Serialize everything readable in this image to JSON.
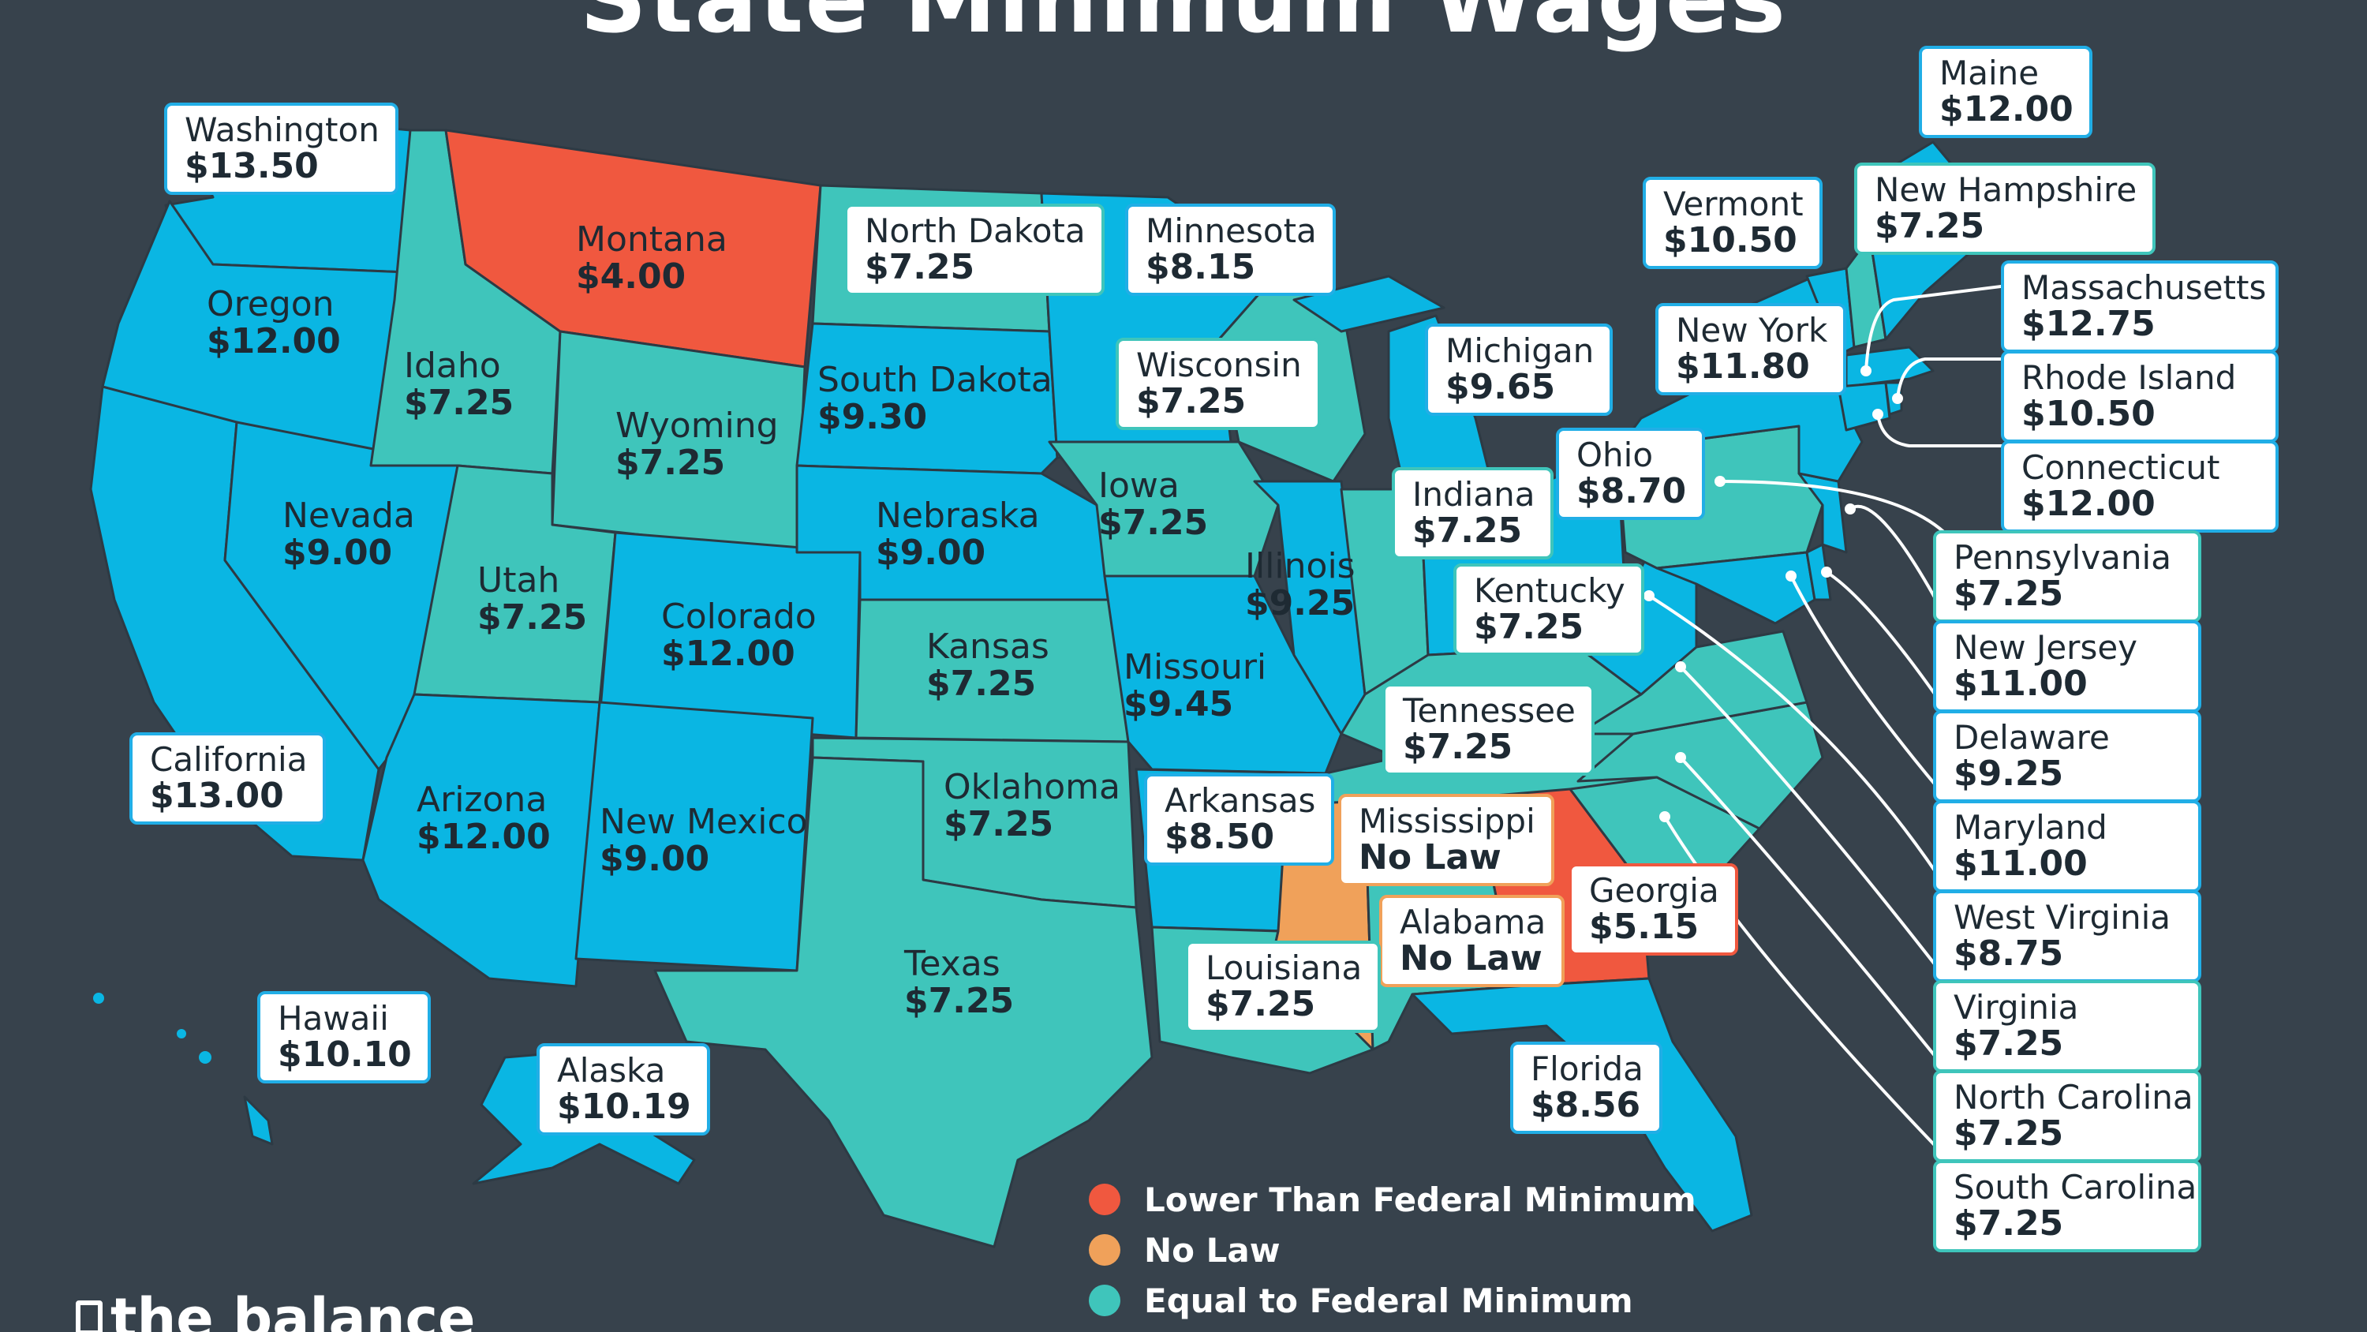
{
  "title": "State Minimum Wages",
  "colors": {
    "background": "#37424c",
    "lower": "#f0583f",
    "no_law": "#f0a15a",
    "equal": "#3fc5bb",
    "higher": "#0ab6e3",
    "label_text": "#1e2a33",
    "white": "#ffffff"
  },
  "states": {
    "washington": {
      "name": "Washington",
      "wage": "$13.50"
    },
    "oregon": {
      "name": "Oregon",
      "wage": "$12.00"
    },
    "california": {
      "name": "California",
      "wage": "$13.00"
    },
    "nevada": {
      "name": "Nevada",
      "wage": "$9.00"
    },
    "idaho": {
      "name": "Idaho",
      "wage": "$7.25"
    },
    "montana": {
      "name": "Montana",
      "wage": "$4.00"
    },
    "wyoming": {
      "name": "Wyoming",
      "wage": "$7.25"
    },
    "utah": {
      "name": "Utah",
      "wage": "$7.25"
    },
    "colorado": {
      "name": "Colorado",
      "wage": "$12.00"
    },
    "arizona": {
      "name": "Arizona",
      "wage": "$12.00"
    },
    "new_mexico": {
      "name": "New Mexico",
      "wage": "$9.00"
    },
    "north_dakota": {
      "name": "North Dakota",
      "wage": "$7.25"
    },
    "south_dakota": {
      "name": "South Dakota",
      "wage": "$9.30"
    },
    "nebraska": {
      "name": "Nebraska",
      "wage": "$9.00"
    },
    "kansas": {
      "name": "Kansas",
      "wage": "$7.25"
    },
    "oklahoma": {
      "name": "Oklahoma",
      "wage": "$7.25"
    },
    "texas": {
      "name": "Texas",
      "wage": "$7.25"
    },
    "minnesota": {
      "name": "Minnesota",
      "wage": "$8.15"
    },
    "iowa": {
      "name": "Iowa",
      "wage": "$7.25"
    },
    "missouri": {
      "name": "Missouri",
      "wage": "$9.45"
    },
    "arkansas": {
      "name": "Arkansas",
      "wage": "$8.50"
    },
    "louisiana": {
      "name": "Louisiana",
      "wage": "$7.25"
    },
    "wisconsin": {
      "name": "Wisconsin",
      "wage": "$7.25"
    },
    "illinois": {
      "name": "Illinois",
      "wage": "$9.25"
    },
    "michigan": {
      "name": "Michigan",
      "wage": "$9.65"
    },
    "indiana": {
      "name": "Indiana",
      "wage": "$7.25"
    },
    "ohio": {
      "name": "Ohio",
      "wage": "$8.70"
    },
    "kentucky": {
      "name": "Kentucky",
      "wage": "$7.25"
    },
    "tennessee": {
      "name": "Tennessee",
      "wage": "$7.25"
    },
    "mississippi": {
      "name": "Mississippi",
      "wage": "No Law"
    },
    "alabama": {
      "name": "Alabama",
      "wage": "No Law"
    },
    "georgia": {
      "name": "Georgia",
      "wage": "$5.15"
    },
    "florida": {
      "name": "Florida",
      "wage": "$8.56"
    },
    "hawaii": {
      "name": "Hawaii",
      "wage": "$10.10"
    },
    "alaska": {
      "name": "Alaska",
      "wage": "$10.19"
    },
    "maine": {
      "name": "Maine",
      "wage": "$12.00"
    },
    "vermont": {
      "name": "Vermont",
      "wage": "$10.50"
    },
    "new_hampshire": {
      "name": "New Hampshire",
      "wage": "$7.25"
    },
    "new_york": {
      "name": "New York",
      "wage": "$11.80"
    },
    "massachusetts": {
      "name": "Massachusetts",
      "wage": "$12.75"
    },
    "rhode_island": {
      "name": "Rhode Island",
      "wage": "$10.50"
    },
    "connecticut": {
      "name": "Connecticut",
      "wage": "$12.00"
    },
    "pennsylvania": {
      "name": "Pennsylvania",
      "wage": "$7.25"
    },
    "new_jersey": {
      "name": "New Jersey",
      "wage": "$11.00"
    },
    "delaware": {
      "name": "Delaware",
      "wage": "$9.25"
    },
    "maryland": {
      "name": "Maryland",
      "wage": "$11.00"
    },
    "west_virginia": {
      "name": "West Virginia",
      "wage": "$8.75"
    },
    "virginia": {
      "name": "Virginia",
      "wage": "$7.25"
    },
    "north_carolina": {
      "name": "North Carolina",
      "wage": "$7.25"
    },
    "south_carolina": {
      "name": "South Carolina",
      "wage": "$7.25"
    }
  },
  "legend": [
    {
      "label": "Lower Than Federal Minimum",
      "color": "#f0583f"
    },
    {
      "label": "No Law",
      "color": "#f0a15a"
    },
    {
      "label": "Equal to Federal Minimum",
      "color": "#3fc5bb"
    }
  ],
  "brand": "the balance"
}
